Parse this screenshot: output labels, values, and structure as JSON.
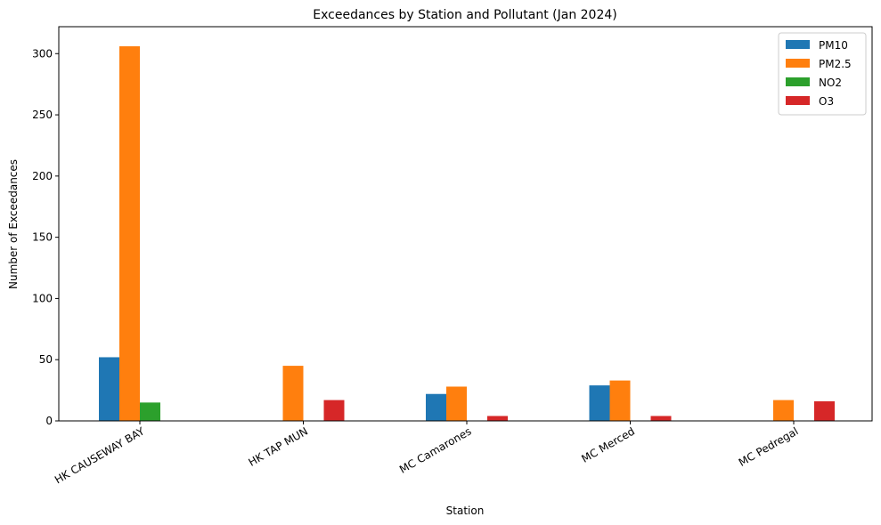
{
  "chart_data": {
    "type": "bar",
    "title": "Exceedances by Station and Pollutant (Jan 2024)",
    "xlabel": "Station",
    "ylabel": "Number of Exceedances",
    "categories": [
      "HK CAUSEWAY BAY",
      "HK TAP MUN",
      "MC Camarones",
      "MC Merced",
      "MC Pedregal"
    ],
    "series": [
      {
        "name": "PM10",
        "color": "#1f77b4",
        "values": [
          52,
          0,
          22,
          29,
          0
        ]
      },
      {
        "name": "PM2.5",
        "color": "#ff7f0e",
        "values": [
          306,
          45,
          28,
          33,
          17
        ]
      },
      {
        "name": "NO2",
        "color": "#2ca02c",
        "values": [
          15,
          0,
          0,
          0,
          0
        ]
      },
      {
        "name": "O3",
        "color": "#d62728",
        "values": [
          0,
          17,
          4,
          4,
          16
        ]
      }
    ],
    "ylim": [
      0,
      322
    ],
    "yticks": [
      0,
      50,
      100,
      150,
      200,
      250,
      300
    ],
    "grid": false,
    "legend_position": "top-right"
  }
}
